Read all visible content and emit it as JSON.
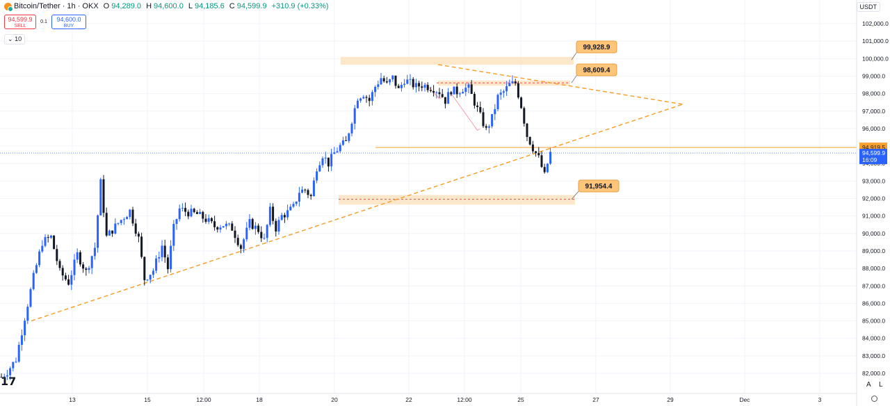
{
  "header": {
    "symbol_title": "Bitcoin/Tether · 1h · OKX",
    "open_label": "O",
    "open": "94,289.0",
    "high_label": "H",
    "high": "94,600.0",
    "low_label": "L",
    "low": "94,185.6",
    "close_label": "C",
    "close": "94,599.9",
    "change": "+310.9 (+0.33%)"
  },
  "trade": {
    "sell_price": "94,599.9",
    "sell_label": "SELL",
    "spread": "0.1",
    "buy_price": "94,600.0",
    "buy_label": "BUY"
  },
  "indicator_toggle": {
    "icon": "chevron-down-icon",
    "count": "10"
  },
  "currency": "USDT",
  "scale_buttons": {
    "auto": "A",
    "log": "L"
  },
  "logo_icon": "tradingview-icon",
  "colors": {
    "up": "#2962ff",
    "down": "#131722",
    "annotation": "#f7a130",
    "zone": "#fde3c2",
    "current_price": "#2962ff",
    "marker_line": "#f7a130",
    "grid": "#f0f3fa"
  },
  "chart_data": {
    "type": "candlestick",
    "timeframe": "1h",
    "x_ticks": [
      "13",
      "15",
      "12:00",
      "18",
      "20",
      "22",
      "12:00",
      "25",
      "27",
      "29",
      "Dec",
      "3"
    ],
    "ylim": [
      81600,
      102700
    ],
    "y_ticks": [
      "82,000.0",
      "83,000.0",
      "84,000.0",
      "85,000.0",
      "86,000.0",
      "87,000.0",
      "88,000.0",
      "89,000.0",
      "90,000.0",
      "91,000.0",
      "92,000.0",
      "93,000.0",
      "94,000.0",
      "95,000.0",
      "96,000.0",
      "97,000.0",
      "98,000.0",
      "99,000.0",
      "100,000.0",
      "101,000.0",
      "102,000.0"
    ],
    "price_path": [
      [
        0,
        81800
      ],
      [
        2,
        82100
      ],
      [
        5,
        82800
      ],
      [
        8,
        85200
      ],
      [
        11,
        87500
      ],
      [
        14,
        89500
      ],
      [
        17,
        89800
      ],
      [
        20,
        87800
      ],
      [
        23,
        87200
      ],
      [
        26,
        88800
      ],
      [
        29,
        87800
      ],
      [
        32,
        89200
      ],
      [
        34,
        92900
      ],
      [
        36,
        89800
      ],
      [
        40,
        90600
      ],
      [
        44,
        91300
      ],
      [
        47,
        89700
      ],
      [
        49,
        87400
      ],
      [
        52,
        87900
      ],
      [
        55,
        89300
      ],
      [
        57,
        88000
      ],
      [
        59,
        90300
      ],
      [
        61,
        91400
      ],
      [
        64,
        91200
      ],
      [
        67,
        91100
      ],
      [
        70,
        90800
      ],
      [
        73,
        90400
      ],
      [
        76,
        90500
      ],
      [
        79,
        90300
      ],
      [
        82,
        89200
      ],
      [
        85,
        90600
      ],
      [
        88,
        90200
      ],
      [
        90,
        89600
      ],
      [
        92,
        91300
      ],
      [
        94,
        90300
      ],
      [
        96,
        91000
      ],
      [
        98,
        91200
      ],
      [
        100,
        91500
      ],
      [
        102,
        92400
      ],
      [
        104,
        92500
      ],
      [
        106,
        92100
      ],
      [
        108,
        93800
      ],
      [
        110,
        94500
      ],
      [
        112,
        94000
      ],
      [
        114,
        94600
      ],
      [
        116,
        95000
      ],
      [
        118,
        95200
      ],
      [
        120,
        96500
      ],
      [
        122,
        97800
      ],
      [
        124,
        98000
      ],
      [
        126,
        97600
      ],
      [
        128,
        98400
      ],
      [
        130,
        98900
      ],
      [
        132,
        98500
      ],
      [
        134,
        98900
      ],
      [
        136,
        98200
      ],
      [
        138,
        98800
      ],
      [
        140,
        98600
      ],
      [
        142,
        98400
      ],
      [
        144,
        98500
      ],
      [
        146,
        98400
      ],
      [
        148,
        98300
      ],
      [
        150,
        98100
      ],
      [
        152,
        97600
      ],
      [
        154,
        98200
      ],
      [
        156,
        98100
      ],
      [
        158,
        98300
      ],
      [
        160,
        98300
      ],
      [
        162,
        97500
      ],
      [
        164,
        96700
      ],
      [
        166,
        95900
      ],
      [
        168,
        96600
      ],
      [
        170,
        97800
      ],
      [
        172,
        98100
      ],
      [
        174,
        98500
      ],
      [
        176,
        98600
      ],
      [
        178,
        97300
      ],
      [
        180,
        95600
      ],
      [
        182,
        94900
      ],
      [
        184,
        94300
      ],
      [
        186,
        93300
      ],
      [
        187,
        94000
      ],
      [
        188,
        94600
      ]
    ],
    "annotations": {
      "price_labels": [
        "99,928.9",
        "98,609.4",
        "91,954.4"
      ],
      "resistance_zone": [
        99650,
        100100
      ],
      "resistance_line": 98609.4,
      "resistance_band": [
        98450,
        98750
      ],
      "support_line": 91954.4,
      "support_zone": [
        91650,
        92200
      ],
      "marker_line": {
        "value": "94,919.5",
        "price": 94919.5
      },
      "current_price": {
        "value": "94,599.9",
        "countdown": "16:09",
        "price": 94599.9
      },
      "ascending_trendline": [
        [
          8,
          85000
        ],
        [
          196,
          97400
        ]
      ],
      "descending_trendline": [
        [
          142,
          99500
        ],
        [
          222,
          97700
        ]
      ],
      "projection_arrows": [
        [
          [
            145,
            98600
          ],
          [
            150,
            97700
          ]
        ],
        [
          [
            154,
            98000
          ],
          [
            163,
            95900
          ]
        ]
      ]
    }
  }
}
